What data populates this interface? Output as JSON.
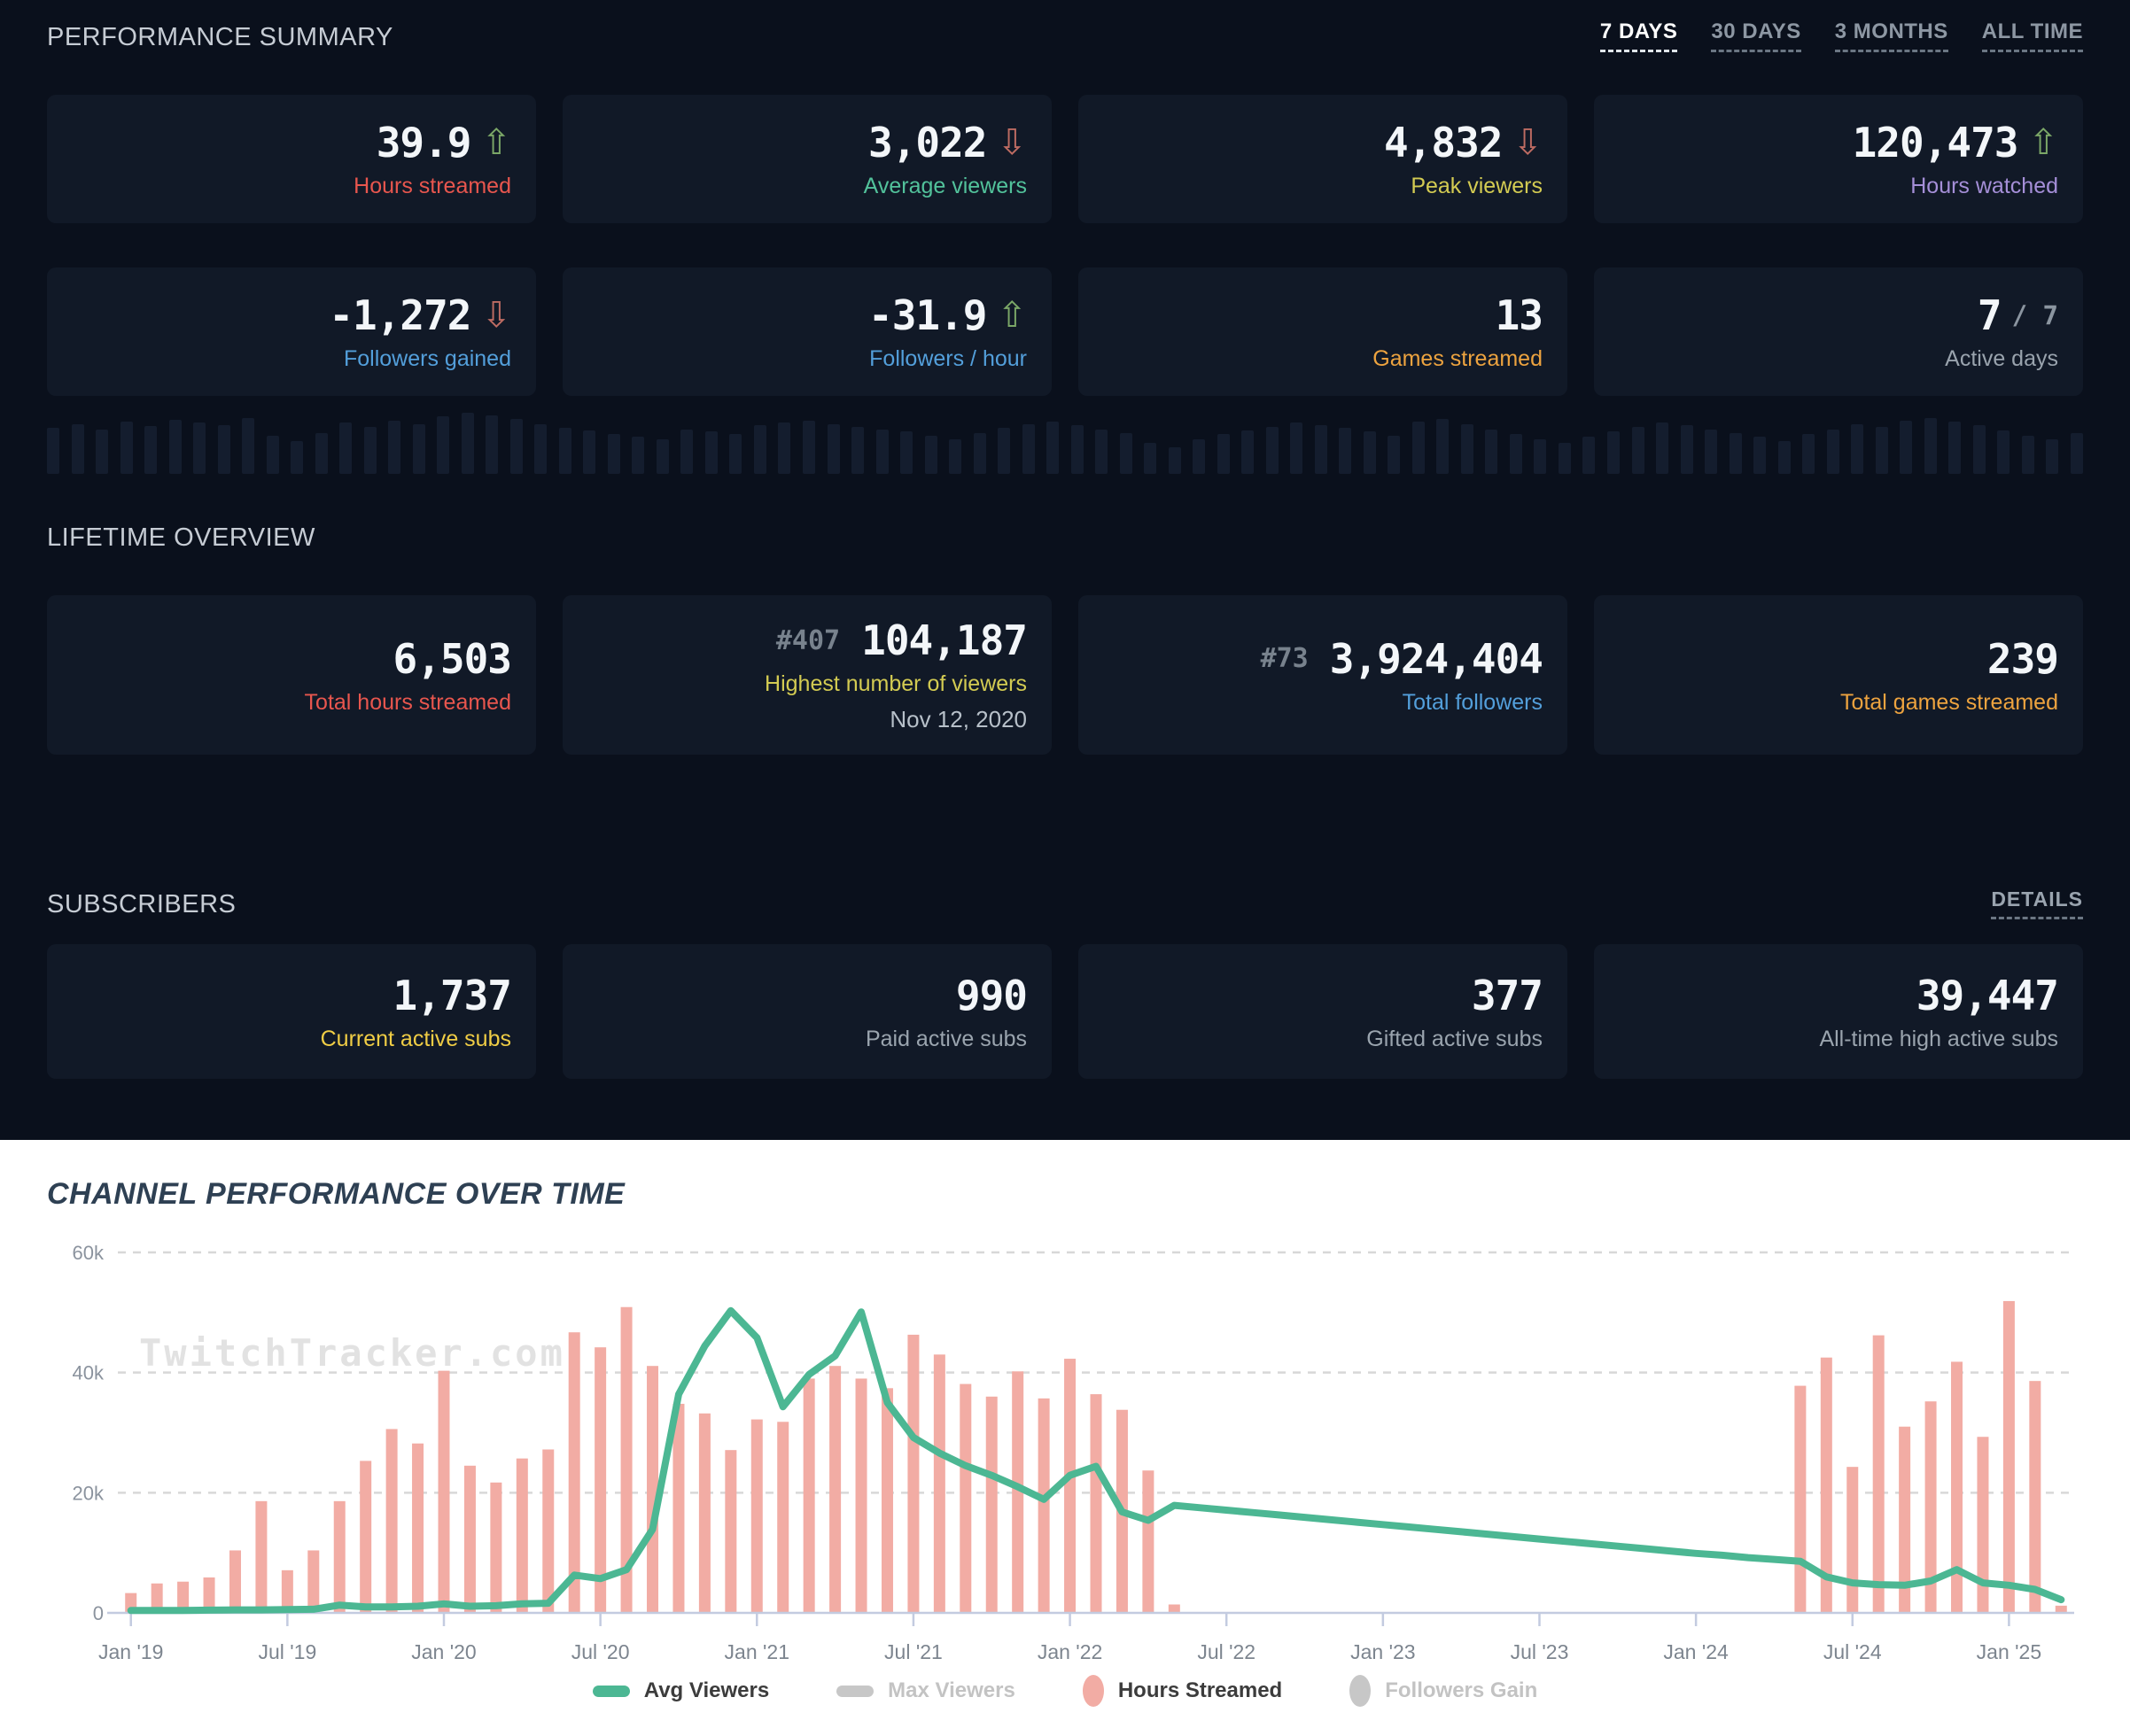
{
  "performance": {
    "title": "PERFORMANCE SUMMARY",
    "filters": [
      {
        "label": "7 DAYS",
        "active": true
      },
      {
        "label": "30 DAYS",
        "active": false
      },
      {
        "label": "3 MONTHS",
        "active": false
      },
      {
        "label": "ALL TIME",
        "active": false
      }
    ],
    "cards": [
      {
        "value": "39.9",
        "arrow": "⇧",
        "arrow_color": "#7ba767",
        "label": "Hours streamed",
        "label_color": "#e8564e"
      },
      {
        "value": "3,022",
        "arrow": "⇩",
        "arrow_color": "#bd6b62",
        "label": "Average viewers",
        "label_color": "#52c29b"
      },
      {
        "value": "4,832",
        "arrow": "⇩",
        "arrow_color": "#bd6b62",
        "label": "Peak viewers",
        "label_color": "#d3cb52"
      },
      {
        "value": "120,473",
        "arrow": "⇧",
        "arrow_color": "#7ba767",
        "label": "Hours watched",
        "label_color": "#a58fd8"
      },
      {
        "value": "-1,272",
        "arrow": "⇩",
        "arrow_color": "#bd6b62",
        "label": "Followers gained",
        "label_color": "#539fdb"
      },
      {
        "value": "-31.9",
        "arrow": "⇧",
        "arrow_color": "#7ba767",
        "label": "Followers / hour",
        "label_color": "#539fdb"
      },
      {
        "value": "13",
        "label": "Games streamed",
        "label_color": "#eda33f"
      },
      {
        "value": "7",
        "suffix": "/ 7",
        "label": "Active days",
        "label_color": "#99a3ad"
      }
    ]
  },
  "sparkline": {
    "heights": [
      72,
      78,
      70,
      82,
      75,
      85,
      80,
      76,
      88,
      60,
      52,
      64,
      80,
      74,
      84,
      78,
      90,
      96,
      92,
      86,
      78,
      72,
      68,
      62,
      58,
      54,
      70,
      66,
      62,
      76,
      80,
      84,
      78,
      74,
      70,
      66,
      60,
      54,
      64,
      72,
      78,
      82,
      76,
      70,
      64,
      48,
      42,
      54,
      62,
      68,
      74,
      80,
      76,
      72,
      66,
      60,
      82,
      86,
      78,
      70,
      62,
      54,
      48,
      58,
      66,
      74,
      80,
      76,
      70,
      64,
      58,
      52,
      62,
      70,
      78,
      74,
      84,
      88,
      82,
      76,
      68,
      60,
      54,
      64
    ]
  },
  "lifetime": {
    "title": "LIFETIME OVERVIEW",
    "cards": [
      {
        "value": "6,503",
        "label": "Total hours streamed",
        "label_color": "#e8564e"
      },
      {
        "rank": "#407",
        "value": "104,187",
        "label": "Highest number of viewers",
        "label_color": "#d3cb52",
        "sub": "Nov 12, 2020"
      },
      {
        "rank": "#73",
        "value": "3,924,404",
        "label": "Total followers",
        "label_color": "#539fdb"
      },
      {
        "value": "239",
        "label": "Total games streamed",
        "label_color": "#eda33f"
      }
    ]
  },
  "subscribers": {
    "title": "SUBSCRIBERS",
    "details_label": "DETAILS",
    "cards": [
      {
        "value": "1,737",
        "label": "Current active subs",
        "label_color": "#f0cd45"
      },
      {
        "value": "990",
        "label": "Paid active subs",
        "label_color": "#9aa4ae"
      },
      {
        "value": "377",
        "label": "Gifted active subs",
        "label_color": "#9aa4ae"
      },
      {
        "value": "39,447",
        "label": "All-time high active subs",
        "label_color": "#9aa4ae"
      }
    ]
  },
  "chart": {
    "title": "CHANNEL PERFORMANCE OVER TIME",
    "watermark": "TwitchTracker.com"
  },
  "chart_data": {
    "type": "bar+line",
    "x_start": "Jan 2019",
    "n_months": 75,
    "x_tick_every": 6,
    "x_tick_labels": [
      "Jan '19",
      "Jul '19",
      "Jan '20",
      "Jul '20",
      "Jan '21",
      "Jul '21",
      "Jan '22",
      "Jul '22",
      "Jan '23",
      "Jul '23",
      "Jan '24",
      "Jul '24",
      "Jan '25"
    ],
    "ylim": [
      0,
      60000
    ],
    "y_ticks_k": [
      0,
      20,
      40,
      60
    ],
    "y_tick_labels": [
      "0",
      "20k",
      "40k",
      "60k"
    ],
    "grid": "dashed horizontal",
    "legend_position": "bottom center",
    "series": [
      {
        "name": "Avg Viewers",
        "type": "line",
        "color": "#4cb793",
        "active": true,
        "values_k": [
          0.4,
          0.4,
          0.4,
          0.45,
          0.5,
          0.5,
          0.55,
          0.6,
          1.3,
          1.0,
          1.0,
          1.1,
          1.5,
          1.1,
          1.2,
          1.5,
          1.6,
          6.3,
          5.7,
          7.2,
          13.9,
          36.4,
          44.4,
          50.3,
          45.8,
          34.3,
          39.7,
          42.8,
          50.1,
          35.0,
          29.2,
          26.6,
          24.5,
          22.9,
          21.0,
          18.9,
          22.9,
          24.4,
          16.8,
          15.4,
          17.9,
          17.5,
          17.1,
          16.7,
          16.3,
          15.9,
          15.5,
          15.1,
          14.7,
          14.3,
          13.9,
          13.5,
          13.1,
          12.7,
          12.3,
          11.9,
          11.5,
          11.1,
          10.7,
          10.3,
          9.9,
          9.6,
          9.2,
          8.9,
          8.6,
          6.0,
          5.0,
          4.7,
          4.6,
          5.3,
          7.2,
          5.0,
          4.6,
          3.9,
          2.2
        ]
      },
      {
        "name": "Max Viewers",
        "type": "line",
        "color": "#c7c7c7",
        "active": false,
        "values_k": []
      },
      {
        "name": "Hours Streamed",
        "type": "bar",
        "color": "#f2aca4",
        "active": true,
        "values_k": [
          3.3,
          4.9,
          5.2,
          5.9,
          10.4,
          18.6,
          7.1,
          10.4,
          18.6,
          25.3,
          30.6,
          28.2,
          40.3,
          24.5,
          21.7,
          25.7,
          27.2,
          46.7,
          44.2,
          50.9,
          41.1,
          34.8,
          33.2,
          27.1,
          32.2,
          31.8,
          39.0,
          41.1,
          39.0,
          37.4,
          46.3,
          43.0,
          38.1,
          36.0,
          40.2,
          35.7,
          42.3,
          36.4,
          33.8,
          23.7,
          1.4,
          0,
          0,
          0,
          0,
          0,
          0,
          0,
          0,
          0,
          0,
          0,
          0,
          0,
          0,
          0,
          0,
          0,
          0,
          0,
          0,
          0,
          0,
          0,
          37.8,
          42.5,
          24.3,
          46.2,
          31.0,
          35.2,
          41.8,
          29.3,
          51.9,
          38.6,
          1.2
        ]
      },
      {
        "name": "Followers Gain",
        "type": "bar",
        "color": "#c9c9c9",
        "active": false,
        "values_k": []
      }
    ]
  }
}
